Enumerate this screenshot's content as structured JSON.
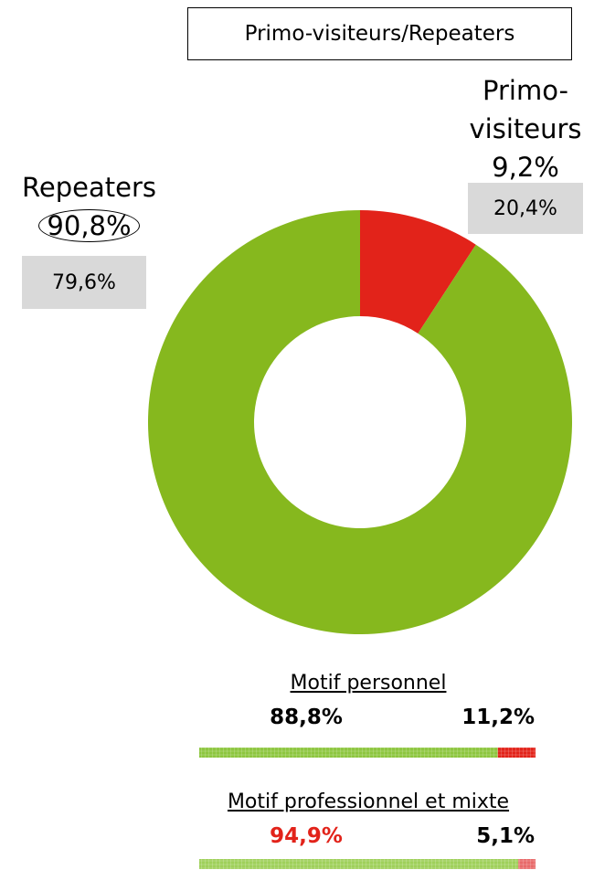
{
  "chart_data": [
    {
      "type": "donut",
      "title": "Primo-visiteurs/Repeaters",
      "categories": [
        "Repeaters",
        "Primo-visiteurs"
      ],
      "values": [
        90.8,
        9.2
      ],
      "value_labels": [
        "90,8%",
        "9,2%"
      ],
      "colors": [
        "#86b81e",
        "#e2231a"
      ],
      "comparison_values": [
        79.6,
        20.4
      ],
      "comparison_labels": [
        "79,6%",
        "20,4%"
      ]
    },
    {
      "type": "bar",
      "orientation": "horizontal",
      "stacked": true,
      "title": "Motif personnel",
      "xlim": [
        0,
        100
      ],
      "series": [
        {
          "color": "#8dc63f",
          "values": [
            88.8
          ],
          "value_labels": [
            "88,8%"
          ],
          "value_label_color": "#000000"
        },
        {
          "color": "#e2231a",
          "values": [
            11.2
          ],
          "value_labels": [
            "11,2%"
          ],
          "value_label_color": "#000000"
        }
      ]
    },
    {
      "type": "bar",
      "orientation": "horizontal",
      "stacked": true,
      "title": "Motif professionnel et mixte",
      "xlim": [
        0,
        100
      ],
      "series": [
        {
          "color": "#9fd05a",
          "values": [
            94.9
          ],
          "value_labels": [
            "94,9%"
          ],
          "value_label_color": "#e2231a"
        },
        {
          "color": "#e86a6a",
          "values": [
            5.1
          ],
          "value_labels": [
            "5,1%"
          ],
          "value_label_color": "#000000"
        }
      ]
    }
  ]
}
